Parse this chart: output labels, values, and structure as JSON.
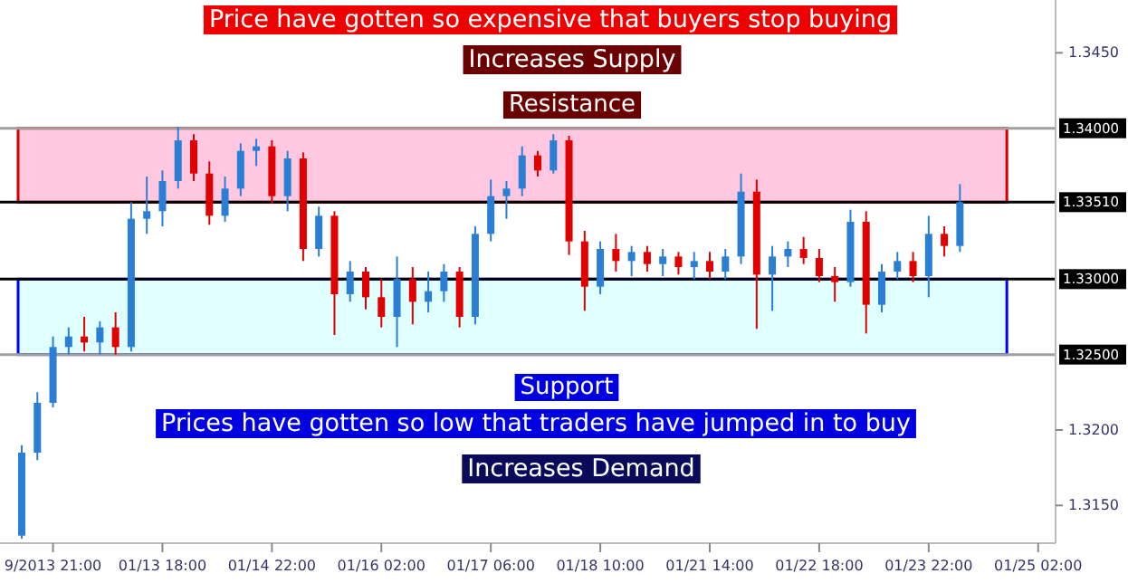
{
  "chart_data": {
    "type": "candlestick",
    "categories": [
      null,
      null,
      "9/2013 21:00",
      null,
      null,
      null,
      null,
      null,
      null,
      "01/13 18:00",
      null,
      null,
      null,
      null,
      null,
      null,
      "01/14 22:00",
      null,
      null,
      null,
      null,
      null,
      null,
      "01/16 02:00",
      null,
      null,
      null,
      null,
      null,
      null,
      "01/17 06:00",
      null,
      null,
      null,
      null,
      null,
      null,
      "01/18 10:00",
      null,
      null,
      null,
      null,
      null,
      null,
      "01/21 14:00",
      null,
      null,
      null,
      null,
      null,
      null,
      "01/22 18:00",
      null,
      null,
      null,
      null,
      null,
      null,
      "01/23 22:00",
      null,
      null,
      null,
      null,
      null,
      null,
      "01/25 02:00",
      null
    ],
    "ohlc": [
      [
        1.313,
        1.319,
        1.3128,
        1.3185
      ],
      [
        1.3185,
        1.3225,
        1.318,
        1.3218
      ],
      [
        1.3218,
        1.3262,
        1.3215,
        1.3255
      ],
      [
        1.3255,
        1.3268,
        1.325,
        1.3262
      ],
      [
        1.3262,
        1.3275,
        1.3252,
        1.3258
      ],
      [
        1.3258,
        1.3272,
        1.325,
        1.3268
      ],
      [
        1.3268,
        1.3278,
        1.325,
        1.3255
      ],
      [
        1.3255,
        1.3351,
        1.3252,
        1.334
      ],
      [
        1.334,
        1.3368,
        1.333,
        1.3345
      ],
      [
        1.3345,
        1.3372,
        1.3335,
        1.3365
      ],
      [
        1.3365,
        1.3401,
        1.336,
        1.3392
      ],
      [
        1.3392,
        1.3396,
        1.3365,
        1.337
      ],
      [
        1.337,
        1.3378,
        1.3336,
        1.3342
      ],
      [
        1.3342,
        1.3368,
        1.3338,
        1.336
      ],
      [
        1.336,
        1.339,
        1.3355,
        1.3385
      ],
      [
        1.3385,
        1.3393,
        1.3375,
        1.3388
      ],
      [
        1.3388,
        1.3392,
        1.335,
        1.3355
      ],
      [
        1.3355,
        1.3385,
        1.3345,
        1.338
      ],
      [
        1.338,
        1.3384,
        1.3312,
        1.332
      ],
      [
        1.332,
        1.3348,
        1.3315,
        1.3342
      ],
      [
        1.3342,
        1.3345,
        1.3263,
        1.329
      ],
      [
        1.329,
        1.3312,
        1.3285,
        1.3305
      ],
      [
        1.3305,
        1.3308,
        1.328,
        1.3288
      ],
      [
        1.3288,
        1.33,
        1.3268,
        1.3275
      ],
      [
        1.3275,
        1.3315,
        1.3255,
        1.33
      ],
      [
        1.33,
        1.3308,
        1.327,
        1.3285
      ],
      [
        1.3285,
        1.3305,
        1.3278,
        1.3292
      ],
      [
        1.3292,
        1.331,
        1.3285,
        1.3305
      ],
      [
        1.3305,
        1.3308,
        1.3268,
        1.3275
      ],
      [
        1.3275,
        1.3335,
        1.327,
        1.333
      ],
      [
        1.333,
        1.3366,
        1.3325,
        1.3355
      ],
      [
        1.3355,
        1.3365,
        1.334,
        1.336
      ],
      [
        1.336,
        1.3388,
        1.3355,
        1.3382
      ],
      [
        1.3382,
        1.3385,
        1.3368,
        1.3372
      ],
      [
        1.3372,
        1.3396,
        1.337,
        1.3392
      ],
      [
        1.3392,
        1.3395,
        1.3316,
        1.3325
      ],
      [
        1.3325,
        1.3332,
        1.3279,
        1.3295
      ],
      [
        1.3295,
        1.3325,
        1.329,
        1.332
      ],
      [
        1.332,
        1.333,
        1.3305,
        1.3312
      ],
      [
        1.3312,
        1.3322,
        1.3302,
        1.3318
      ],
      [
        1.3318,
        1.3322,
        1.3305,
        1.331
      ],
      [
        1.331,
        1.332,
        1.3302,
        1.3315
      ],
      [
        1.3315,
        1.3318,
        1.3303,
        1.3308
      ],
      [
        1.3308,
        1.3318,
        1.33,
        1.3312
      ],
      [
        1.3312,
        1.3318,
        1.33,
        1.3305
      ],
      [
        1.3305,
        1.332,
        1.33,
        1.3315
      ],
      [
        1.3315,
        1.337,
        1.331,
        1.3358
      ],
      [
        1.3358,
        1.3366,
        1.3267,
        1.3303
      ],
      [
        1.3303,
        1.3322,
        1.3279,
        1.3315
      ],
      [
        1.3315,
        1.3325,
        1.3308,
        1.332
      ],
      [
        1.332,
        1.3328,
        1.331,
        1.3314
      ],
      [
        1.3314,
        1.332,
        1.3298,
        1.3302
      ],
      [
        1.3302,
        1.3308,
        1.3285,
        1.3298
      ],
      [
        1.3298,
        1.3346,
        1.3295,
        1.3338
      ],
      [
        1.3338,
        1.3345,
        1.3264,
        1.3283
      ],
      [
        1.3283,
        1.331,
        1.3278,
        1.3305
      ],
      [
        1.3305,
        1.3318,
        1.33,
        1.3312
      ],
      [
        1.3312,
        1.3318,
        1.3298,
        1.3302
      ],
      [
        1.3302,
        1.3342,
        1.3288,
        1.333
      ],
      [
        1.333,
        1.3335,
        1.3315,
        1.3322
      ],
      [
        1.3322,
        1.3363,
        1.3318,
        1.3351
      ],
      null,
      null,
      null,
      null,
      null,
      null
    ],
    "colors": [
      "#2a7fd4",
      "#2a7fd4",
      "#2a7fd4",
      "#2a7fd4",
      "#e00000",
      "#2a7fd4",
      "#e00000",
      "#2a7fd4",
      "#2a7fd4",
      "#2a7fd4",
      "#2a7fd4",
      "#e00000",
      "#e00000",
      "#2a7fd4",
      "#2a7fd4",
      "#2a7fd4",
      "#e00000",
      "#2a7fd4",
      "#e00000",
      "#2a7fd4",
      "#e00000",
      "#2a7fd4",
      "#e00000",
      "#e00000",
      "#2a7fd4",
      "#e00000",
      "#2a7fd4",
      "#2a7fd4",
      "#e00000",
      "#2a7fd4",
      "#2a7fd4",
      "#2a7fd4",
      "#2a7fd4",
      "#e00000",
      "#2a7fd4",
      "#e00000",
      "#e00000",
      "#2a7fd4",
      "#e00000",
      "#2a7fd4",
      "#e00000",
      "#2a7fd4",
      "#e00000",
      "#2a7fd4",
      "#e00000",
      "#2a7fd4",
      "#2a7fd4",
      "#e00000",
      "#2a7fd4",
      "#2a7fd4",
      "#e00000",
      "#e00000",
      "#e00000",
      "#2a7fd4",
      "#e00000",
      "#2a7fd4",
      "#2a7fd4",
      "#e00000",
      "#2a7fd4",
      "#e00000",
      "#2a7fd4",
      null,
      null,
      null,
      null,
      null,
      null
    ],
    "ylim": [
      1.3125,
      1.3485
    ],
    "yticks": [
      {
        "value": 1.315,
        "label": "1.3150"
      },
      {
        "value": 1.32,
        "label": "1.3200"
      },
      {
        "value": 1.345,
        "label": "1.3450"
      }
    ],
    "ref_lines": [
      {
        "axis": "y",
        "value": 1.34,
        "label": "1.34000",
        "color": "#a0a0a0"
      },
      {
        "axis": "y",
        "value": 1.3351,
        "label": "1.33510",
        "color": "#000000"
      },
      {
        "axis": "y",
        "value": 1.33,
        "label": "1.33000",
        "color": "#000000"
      },
      {
        "axis": "y",
        "value": 1.325,
        "label": "1.32500",
        "color": "#a0a0a0"
      }
    ],
    "bands": [
      {
        "axis": "y",
        "from": 1.3351,
        "to": 1.34,
        "label": "Resistance",
        "color": "#ffc8e0"
      },
      {
        "axis": "y",
        "from": 1.325,
        "to": 1.33,
        "label": "Support",
        "color": "#e0ffff"
      }
    ],
    "annotations": [
      "Price have gotten so expensive that buyers stop buying",
      "Increases Supply",
      "Prices have gotten so low that traders have jumped in to buy",
      "Increases Demand"
    ],
    "grid": false
  }
}
